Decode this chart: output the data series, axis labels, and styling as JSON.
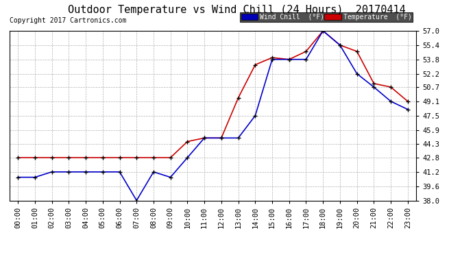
{
  "title": "Outdoor Temperature vs Wind Chill (24 Hours)  20170414",
  "copyright": "Copyright 2017 Cartronics.com",
  "background_color": "#ffffff",
  "plot_bg_color": "#ffffff",
  "grid_color": "#b0b0b0",
  "hours": [
    "00:00",
    "01:00",
    "02:00",
    "03:00",
    "04:00",
    "05:00",
    "06:00",
    "07:00",
    "08:00",
    "09:00",
    "10:00",
    "11:00",
    "12:00",
    "13:00",
    "14:00",
    "15:00",
    "16:00",
    "17:00",
    "18:00",
    "19:00",
    "20:00",
    "21:00",
    "22:00",
    "23:00"
  ],
  "temperature": [
    42.8,
    42.8,
    42.8,
    42.8,
    42.8,
    42.8,
    42.8,
    42.8,
    42.8,
    42.8,
    44.6,
    45.0,
    45.0,
    49.5,
    53.2,
    54.0,
    53.8,
    54.7,
    57.0,
    55.4,
    54.7,
    51.1,
    50.7,
    49.1
  ],
  "wind_chill": [
    40.6,
    40.6,
    41.2,
    41.2,
    41.2,
    41.2,
    41.2,
    38.0,
    41.2,
    40.6,
    42.8,
    45.0,
    45.0,
    45.0,
    47.5,
    53.8,
    53.8,
    53.8,
    57.0,
    55.4,
    52.2,
    50.7,
    49.1,
    48.2
  ],
  "temp_color": "#cc0000",
  "wind_chill_color": "#0000cc",
  "ylim_min": 38.0,
  "ylim_max": 57.0,
  "yticks": [
    38.0,
    39.6,
    41.2,
    42.8,
    44.3,
    45.9,
    47.5,
    49.1,
    50.7,
    52.2,
    53.8,
    55.4,
    57.0
  ],
  "title_fontsize": 11,
  "tick_fontsize": 7.5,
  "copyright_fontsize": 7,
  "legend_wind_label": "Wind Chill  (°F)",
  "legend_temp_label": "Temperature  (°F)",
  "legend_wind_bg": "#0000bb",
  "legend_temp_bg": "#cc0000"
}
